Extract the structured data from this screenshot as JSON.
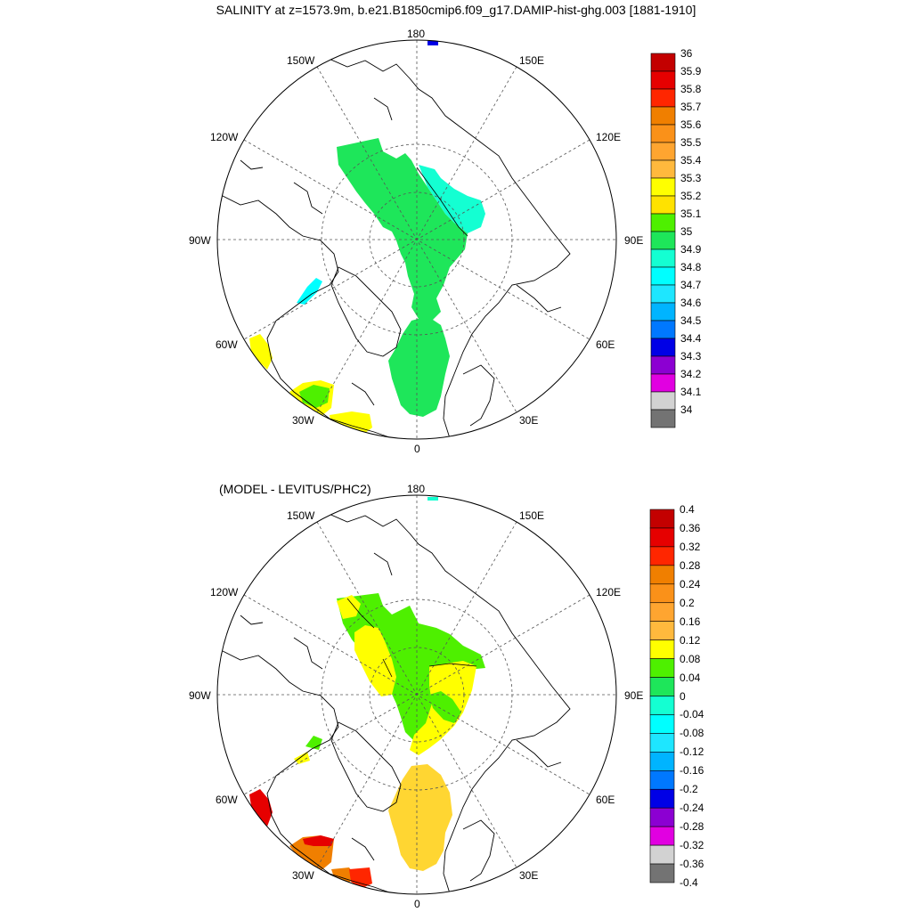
{
  "title": "SALINITY at z=1573.9m, b.e21.B1850cmip6.f09_g17.DAMIP-hist-ghg.003 [1881-1910]",
  "diff_title": "(MODEL - LEVITUS/PHC2)",
  "longitude_labels": {
    "top": "180",
    "bottom": "0",
    "left": "90W",
    "right": "90E",
    "upper_left_1": "150W",
    "upper_left_2": "120W",
    "upper_right_1": "150E",
    "upper_right_2": "120E",
    "lower_left_1": "60W",
    "lower_left_2": "30W",
    "lower_right_1": "60E",
    "lower_right_2": "30E"
  },
  "colorbar_top": {
    "labels": [
      "36",
      "35.9",
      "35.8",
      "35.7",
      "35.6",
      "35.5",
      "35.4",
      "35.3",
      "35.2",
      "35.1",
      "35",
      "34.9",
      "34.8",
      "34.7",
      "34.6",
      "34.5",
      "34.4",
      "34.3",
      "34.2",
      "34.1",
      "34"
    ],
    "colors": [
      "#c30000",
      "#e60000",
      "#ff2600",
      "#f07f00",
      "#fa9119",
      "#ffa530",
      "#ffb93d",
      "#ffff00",
      "#ffe200",
      "#4ef000",
      "#1ee65a",
      "#14ffd2",
      "#00ffff",
      "#1ee6ff",
      "#00b4ff",
      "#0078ff",
      "#0000e6",
      "#8c00d2",
      "#e100e1",
      "#d2d2d2"
    ],
    "bottom_color": "#737373"
  },
  "colorbar_bottom": {
    "labels": [
      "0.4",
      "0.36",
      "0.32",
      "0.28",
      "0.24",
      "0.2",
      "0.16",
      "0.12",
      "0.08",
      "0.04",
      "0",
      "-0.04",
      "-0.08",
      "-0.12",
      "-0.16",
      "-0.2",
      "-0.24",
      "-0.28",
      "-0.32",
      "-0.36",
      "-0.4"
    ],
    "colors": [
      "#c30000",
      "#e60000",
      "#ff2600",
      "#f07f00",
      "#fa9119",
      "#ffa530",
      "#ffb93d",
      "#ffff00",
      "#4ef000",
      "#1ee65a",
      "#14ffd2",
      "#00ffff",
      "#1ee6ff",
      "#00b4ff",
      "#0078ff",
      "#0000e6",
      "#8c00d2",
      "#e100e1",
      "#d2d2d2",
      "#737373"
    ]
  }
}
